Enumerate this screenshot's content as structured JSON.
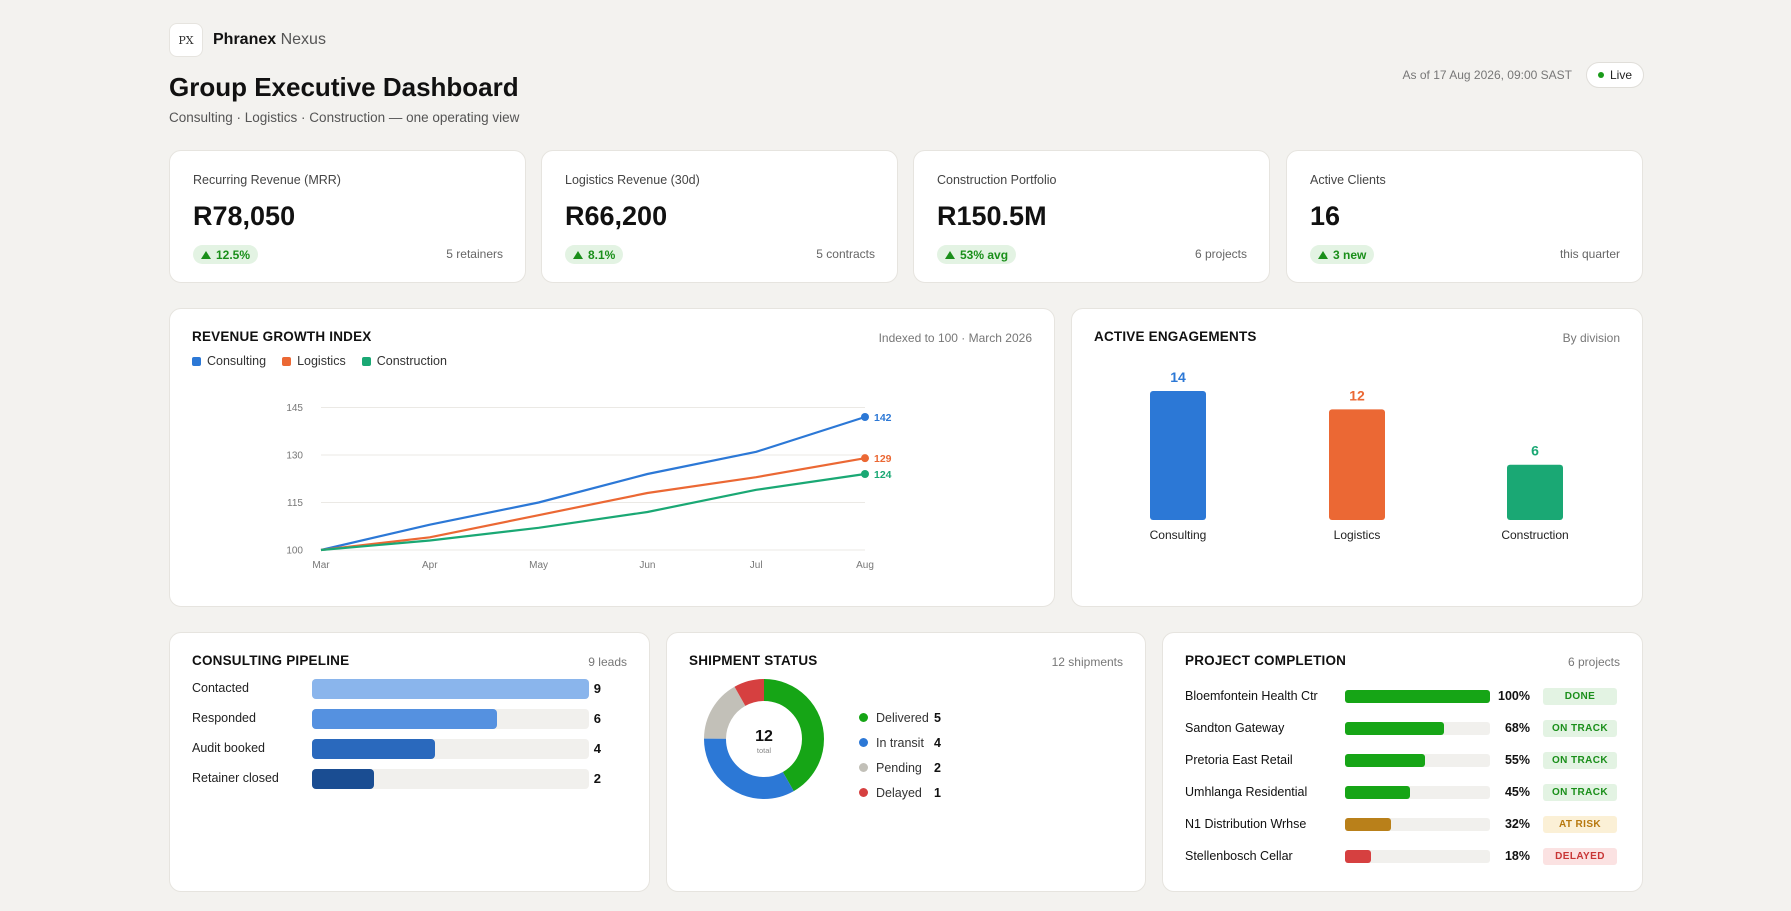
{
  "brand": {
    "mark": "PX",
    "name_bold": "Phranex",
    "name_light": "Nexus"
  },
  "header": {
    "title": "Group Executive Dashboard",
    "subtitle": "Consulting · Logistics · Construction — one operating view",
    "as_of": "As of 17 Aug 2026, 09:00 SAST",
    "live_label": "Live"
  },
  "colors": {
    "consulting": "#2c78d6",
    "logistics": "#eb6834",
    "construction": "#1aa874",
    "positive": "#1a8f1a"
  },
  "kpis": [
    {
      "label": "Recurring Revenue (MRR)",
      "value": "R78,050",
      "change": "12.5%",
      "note": "5 retainers"
    },
    {
      "label": "Logistics Revenue (30d)",
      "value": "R66,200",
      "change": "8.1%",
      "note": "5 contracts"
    },
    {
      "label": "Construction Portfolio",
      "value": "R150.5M",
      "change": "53% avg",
      "note": "6 projects"
    },
    {
      "label": "Active Clients",
      "value": "16",
      "change": "3 new",
      "note": "this quarter"
    }
  ],
  "revenue_growth": {
    "title": "REVENUE GROWTH INDEX",
    "meta": "Indexed to 100 · March 2026"
  },
  "engagements": {
    "title": "ACTIVE ENGAGEMENTS",
    "meta": "By division"
  },
  "chart_data": [
    {
      "type": "line",
      "title": "REVENUE GROWTH INDEX",
      "x": [
        "Mar",
        "Apr",
        "May",
        "Jun",
        "Jul",
        "Aug"
      ],
      "yticks": [
        100,
        115,
        130,
        145
      ],
      "ylim": [
        100,
        150
      ],
      "grid": true,
      "legend": "top-left",
      "series": [
        {
          "name": "Consulting",
          "color": "#2c78d6",
          "values": [
            100,
            108,
            115,
            124,
            131,
            142
          ]
        },
        {
          "name": "Logistics",
          "color": "#eb6834",
          "values": [
            100,
            104,
            111,
            118,
            123,
            129
          ]
        },
        {
          "name": "Construction",
          "color": "#1aa874",
          "values": [
            100,
            103,
            107,
            112,
            119,
            124
          ]
        }
      ]
    },
    {
      "type": "bar",
      "title": "ACTIVE ENGAGEMENTS",
      "categories": [
        "Consulting",
        "Logistics",
        "Construction"
      ],
      "values": [
        14,
        12,
        6
      ],
      "colors": [
        "#2c78d6",
        "#eb6834",
        "#1aa874"
      ]
    },
    {
      "type": "bar",
      "title": "CONSULTING PIPELINE",
      "categories": [
        "Contacted",
        "Responded",
        "Audit booked",
        "Retainer closed"
      ],
      "values": [
        9,
        6,
        4,
        2
      ],
      "colors": [
        "#8ab5ec",
        "#5591e0",
        "#2a69bd",
        "#1a4d92"
      ]
    },
    {
      "type": "pie",
      "title": "SHIPMENT STATUS",
      "categories": [
        "Delivered",
        "In transit",
        "Pending",
        "Delayed"
      ],
      "values": [
        5,
        4,
        2,
        1
      ],
      "colors": [
        "#16a516",
        "#2c78d6",
        "#c2c0b8",
        "#d64040"
      ],
      "center_value": "12",
      "center_label": "total"
    }
  ],
  "pipeline": {
    "title": "CONSULTING PIPELINE",
    "meta": "9 leads"
  },
  "shipments": {
    "title": "SHIPMENT STATUS",
    "meta": "12 shipments"
  },
  "projects": {
    "title": "PROJECT COMPLETION",
    "meta": "6 projects",
    "items": [
      {
        "name": "Bloemfontein Health Ctr",
        "pct": "100%",
        "progress": 1.0,
        "status": "DONE",
        "color": "#16a516"
      },
      {
        "name": "Sandton Gateway",
        "pct": "68%",
        "progress": 0.68,
        "status": "ON TRACK",
        "color": "#16a516"
      },
      {
        "name": "Pretoria East Retail",
        "pct": "55%",
        "progress": 0.55,
        "status": "ON TRACK",
        "color": "#16a516"
      },
      {
        "name": "Umhlanga Residential",
        "pct": "45%",
        "progress": 0.45,
        "status": "ON TRACK",
        "color": "#16a516"
      },
      {
        "name": "N1 Distribution Wrhse",
        "pct": "32%",
        "progress": 0.32,
        "status": "AT RISK",
        "color": "#b9801a"
      },
      {
        "name": "Stellenbosch Cellar",
        "pct": "18%",
        "progress": 0.18,
        "status": "DELAYED",
        "color": "#d64040"
      }
    ]
  }
}
